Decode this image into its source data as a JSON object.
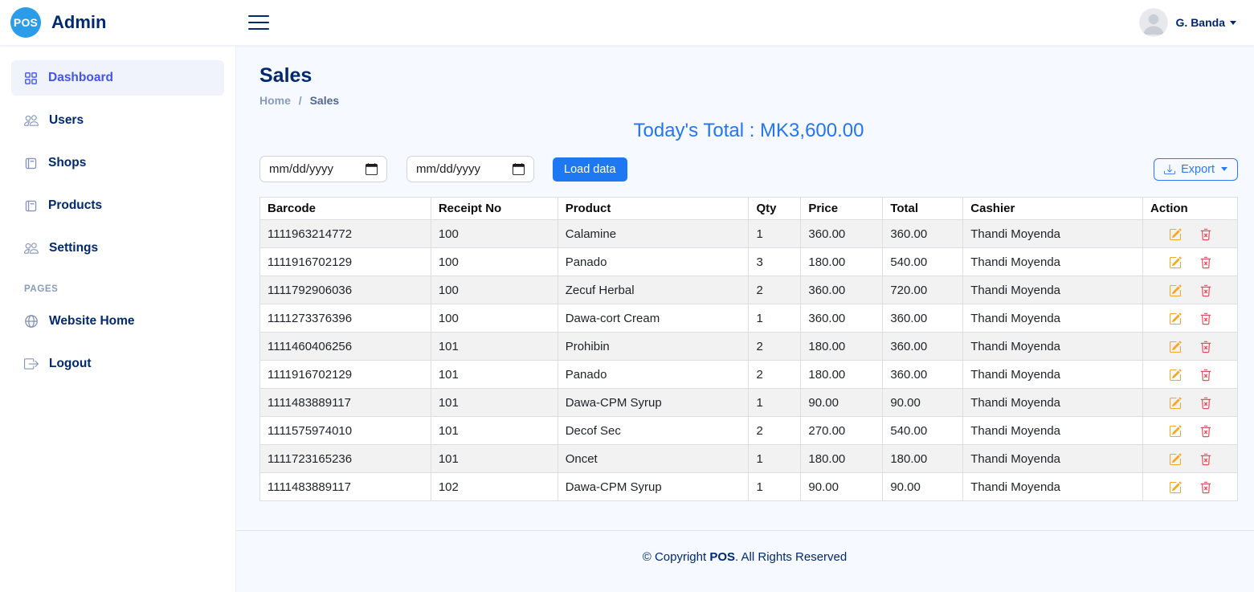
{
  "header": {
    "logo_text": "POS",
    "app_title": "Admin",
    "user_name": "G. Banda"
  },
  "sidebar": {
    "items": [
      {
        "label": "Dashboard",
        "icon": "grid-icon",
        "active": true
      },
      {
        "label": "Users",
        "icon": "people-icon",
        "active": false
      },
      {
        "label": "Shops",
        "icon": "journal-icon",
        "active": false
      },
      {
        "label": "Products",
        "icon": "journal-icon",
        "active": false
      },
      {
        "label": "Settings",
        "icon": "people-icon",
        "active": false
      }
    ],
    "section_label": "PAGES",
    "pages_items": [
      {
        "label": "Website Home",
        "icon": "globe-icon"
      },
      {
        "label": "Logout",
        "icon": "logout-icon"
      }
    ]
  },
  "page": {
    "title": "Sales",
    "breadcrumb": {
      "home": "Home",
      "separator": "/",
      "current": "Sales"
    },
    "todays_total": "Today's Total : MK3,600.00"
  },
  "filters": {
    "date_from_value": "mm/dd/yyyy",
    "date_to_value": "mm/dd/yyyy",
    "load_button_label": "Load data",
    "export_button_label": "Export"
  },
  "table": {
    "columns": [
      "Barcode",
      "Receipt No",
      "Product",
      "Qty",
      "Price",
      "Total",
      "Cashier",
      "Action"
    ],
    "rows": [
      {
        "barcode": "1111963214772",
        "receipt_no": "100",
        "product": "Calamine",
        "qty": "1",
        "price": "360.00",
        "total": "360.00",
        "cashier": "Thandi Moyenda"
      },
      {
        "barcode": "1111916702129",
        "receipt_no": "100",
        "product": "Panado",
        "qty": "3",
        "price": "180.00",
        "total": "540.00",
        "cashier": "Thandi Moyenda"
      },
      {
        "barcode": "1111792906036",
        "receipt_no": "100",
        "product": "Zecuf Herbal",
        "qty": "2",
        "price": "360.00",
        "total": "720.00",
        "cashier": "Thandi Moyenda"
      },
      {
        "barcode": "1111273376396",
        "receipt_no": "100",
        "product": "Dawa-cort Cream",
        "qty": "1",
        "price": "360.00",
        "total": "360.00",
        "cashier": "Thandi Moyenda"
      },
      {
        "barcode": "1111460406256",
        "receipt_no": "101",
        "product": "Prohibin",
        "qty": "2",
        "price": "180.00",
        "total": "360.00",
        "cashier": "Thandi Moyenda"
      },
      {
        "barcode": "1111916702129",
        "receipt_no": "101",
        "product": "Panado",
        "qty": "2",
        "price": "180.00",
        "total": "360.00",
        "cashier": "Thandi Moyenda"
      },
      {
        "barcode": "1111483889117",
        "receipt_no": "101",
        "product": "Dawa-CPM Syrup",
        "qty": "1",
        "price": "90.00",
        "total": "90.00",
        "cashier": "Thandi Moyenda"
      },
      {
        "barcode": "1111575974010",
        "receipt_no": "101",
        "product": "Decof Sec",
        "qty": "2",
        "price": "270.00",
        "total": "540.00",
        "cashier": "Thandi Moyenda"
      },
      {
        "barcode": "1111723165236",
        "receipt_no": "101",
        "product": "Oncet",
        "qty": "1",
        "price": "180.00",
        "total": "180.00",
        "cashier": "Thandi Moyenda"
      },
      {
        "barcode": "1111483889117",
        "receipt_no": "102",
        "product": "Dawa-CPM Syrup",
        "qty": "1",
        "price": "90.00",
        "total": "90.00",
        "cashier": "Thandi Moyenda"
      }
    ]
  },
  "footer": {
    "prefix": "© Copyright ",
    "brand": "POS",
    "suffix": ". All Rights Reserved"
  },
  "colors": {
    "primary": "#0d6efd",
    "accent": "#4154f1",
    "heading": "#012970",
    "logo_blue": "#2a9ce8",
    "total_blue": "#2575f0",
    "edit_icon": "#f5a623",
    "delete_icon": "#df4f5f",
    "row_stripe": "#f2f2f2"
  }
}
